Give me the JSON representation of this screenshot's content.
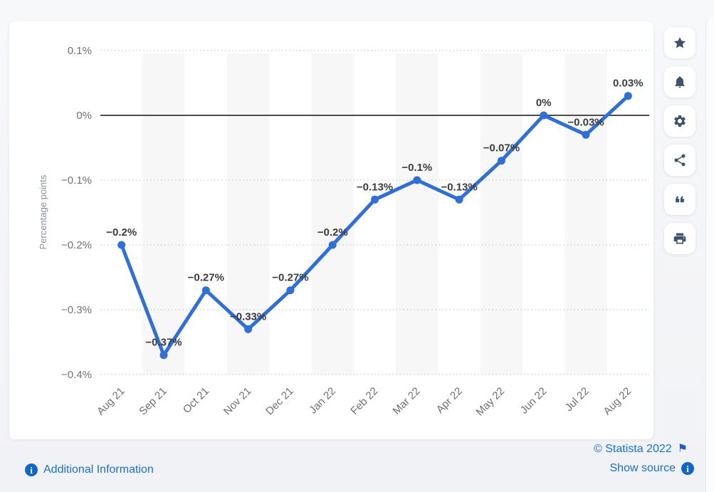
{
  "chart_data": {
    "type": "line",
    "title": "",
    "ylabel": "Percentage points",
    "xlabel": "",
    "categories": [
      "Aug 21",
      "Sep 21",
      "Oct 21",
      "Nov 21",
      "Dec 21",
      "Jan 22",
      "Feb 22",
      "Mar 22",
      "Apr 22",
      "May 22",
      "Jun 22",
      "Jul 22",
      "Aug 22"
    ],
    "values": [
      -0.2,
      -0.37,
      -0.27,
      -0.33,
      -0.27,
      -0.2,
      -0.13,
      -0.1,
      -0.13,
      -0.07,
      0,
      -0.03,
      0.03
    ],
    "point_labels": [
      "−0.2%",
      "−0.37%",
      "−0.27%",
      "−0.33%",
      "−0.27%",
      "−0.2%",
      "−0.13%",
      "−0.1%",
      "−0.13%",
      "−0.07%",
      "0%",
      "−0.03%",
      "0.03%"
    ],
    "yticks": [
      {
        "value": 0.1,
        "label": "0.1%"
      },
      {
        "value": 0,
        "label": "0%"
      },
      {
        "value": -0.1,
        "label": "−0.1%"
      },
      {
        "value": -0.2,
        "label": "−0.2%"
      },
      {
        "value": -0.3,
        "label": "−0.3%"
      },
      {
        "value": -0.4,
        "label": "−0.4%"
      }
    ],
    "ylim": [
      -0.44,
      0.145
    ],
    "grid": "horizontal dotted lines; solid dark zero line; alternating light vertical bands",
    "legend": "none",
    "colors": {
      "line": "#2f6fd6",
      "zero_line": "#4d4d4d",
      "grid": "#cbcbcb",
      "band": "#f7f7f8",
      "tick_text": "#6f7276",
      "label_text": "#3b3c3e"
    }
  },
  "toolbar": {
    "items": [
      {
        "name": "favorite",
        "icon": "star-icon"
      },
      {
        "name": "alerts",
        "icon": "bell-icon"
      },
      {
        "name": "settings",
        "icon": "gear-icon"
      },
      {
        "name": "share",
        "icon": "share-icon"
      },
      {
        "name": "cite",
        "icon": "quote-icon"
      },
      {
        "name": "print",
        "icon": "printer-icon"
      }
    ]
  },
  "footer": {
    "additional_information": "Additional Information",
    "copyright": "© Statista 2022",
    "show_source": "Show source",
    "link_color": "#1a6fc9"
  }
}
